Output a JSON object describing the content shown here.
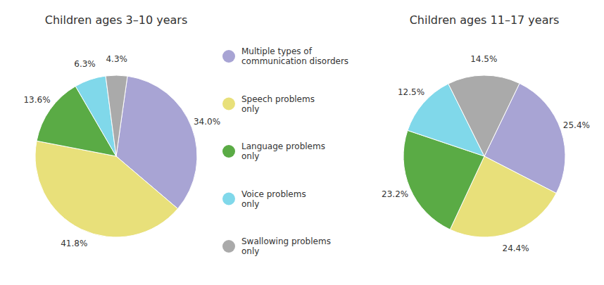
{
  "chart_data": [
    {
      "type": "pie",
      "title": "Children ages 3–10 years",
      "categories": [
        "Multiple types of\ncommunication disorders",
        "Speech problems\nonly",
        "Language problems\nonly",
        "Voice problems\nonly",
        "Swallowing problems\nonly"
      ],
      "values": [
        34.0,
        41.8,
        13.6,
        6.3,
        4.3
      ],
      "value_labels": [
        "34.0%",
        "41.8%",
        "13.6%",
        "6.3%",
        "4.3%"
      ],
      "colors": [
        "#a8a4d4",
        "#e8e07a",
        "#5aab45",
        "#80d8ea",
        "#aaaaaa"
      ],
      "data_labels": true,
      "legend": "right"
    },
    {
      "type": "pie",
      "title": "Children ages 11–17 years",
      "categories": [
        "Multiple types of\ncommunication disorders",
        "Speech problems\nonly",
        "Language problems\nonly",
        "Voice problems\nonly",
        "Swallowing problems\nonly"
      ],
      "values": [
        25.4,
        24.4,
        23.2,
        12.5,
        14.5
      ],
      "value_labels": [
        "25.4%",
        "24.4%",
        "23.2%",
        "12.5%",
        "14.5%"
      ],
      "colors": [
        "#a8a4d4",
        "#e8e07a",
        "#5aab45",
        "#80d8ea",
        "#aaaaaa"
      ],
      "data_labels": true
    }
  ]
}
